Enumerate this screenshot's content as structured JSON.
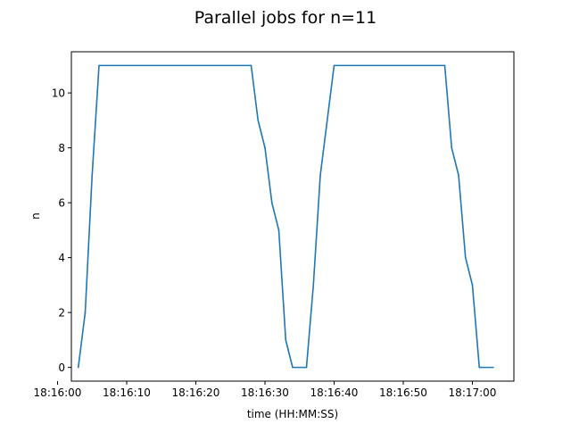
{
  "colors": {
    "series": "#1f77b4",
    "axes": "#000000",
    "background": "#ffffff"
  },
  "chart_data": {
    "type": "line",
    "title": "Parallel jobs for n=11",
    "xlabel": "time (HH:MM:SS)",
    "ylabel": "n",
    "xlim": [
      "18:16:02",
      "18:17:06"
    ],
    "ylim": [
      -0.5,
      11.5
    ],
    "xticks": [
      "18:16:00",
      "18:16:10",
      "18:16:20",
      "18:16:30",
      "18:16:40",
      "18:16:50",
      "18:17:00"
    ],
    "yticks": [
      "0",
      "2",
      "4",
      "6",
      "8",
      "10"
    ],
    "grid": false,
    "series": [
      {
        "x": [
          "18:16:03",
          "18:16:04",
          "18:16:05",
          "18:16:06",
          "18:16:28",
          "18:16:29",
          "18:16:30",
          "18:16:31",
          "18:16:32",
          "18:16:33",
          "18:16:34",
          "18:16:36",
          "18:16:37",
          "18:16:38",
          "18:16:40",
          "18:16:56",
          "18:16:57",
          "18:16:58",
          "18:16:59",
          "18:17:00",
          "18:17:01",
          "18:17:03"
        ],
        "y": [
          0,
          2,
          7,
          11,
          11,
          9,
          8,
          6,
          5,
          1,
          0,
          0,
          3,
          7,
          11,
          11,
          8,
          7,
          4,
          3,
          0,
          0
        ]
      }
    ]
  }
}
